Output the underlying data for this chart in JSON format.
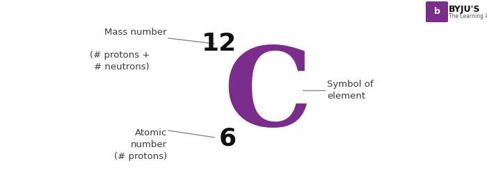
{
  "background_color": "#ffffff",
  "element_symbol": "C",
  "element_color": "#7b2d8b",
  "mass_number": "12",
  "atomic_number": "6",
  "mass_number_label": "Mass number",
  "mass_number_label2": "(# protons +\n# neutrons)",
  "atomic_number_label": "Atomic\nnumber\n(# protons)",
  "symbol_of_element_label": "Symbol of\nelement",
  "label_color": "#3a3a3a",
  "number_color": "#111111",
  "line_color": "#888888",
  "byju_box_color": "#7b2d8b",
  "byju_text": "BYJU'S",
  "byju_subtext": "The Learning App",
  "fig_width": 7.0,
  "fig_height": 2.68,
  "dpi": 100
}
